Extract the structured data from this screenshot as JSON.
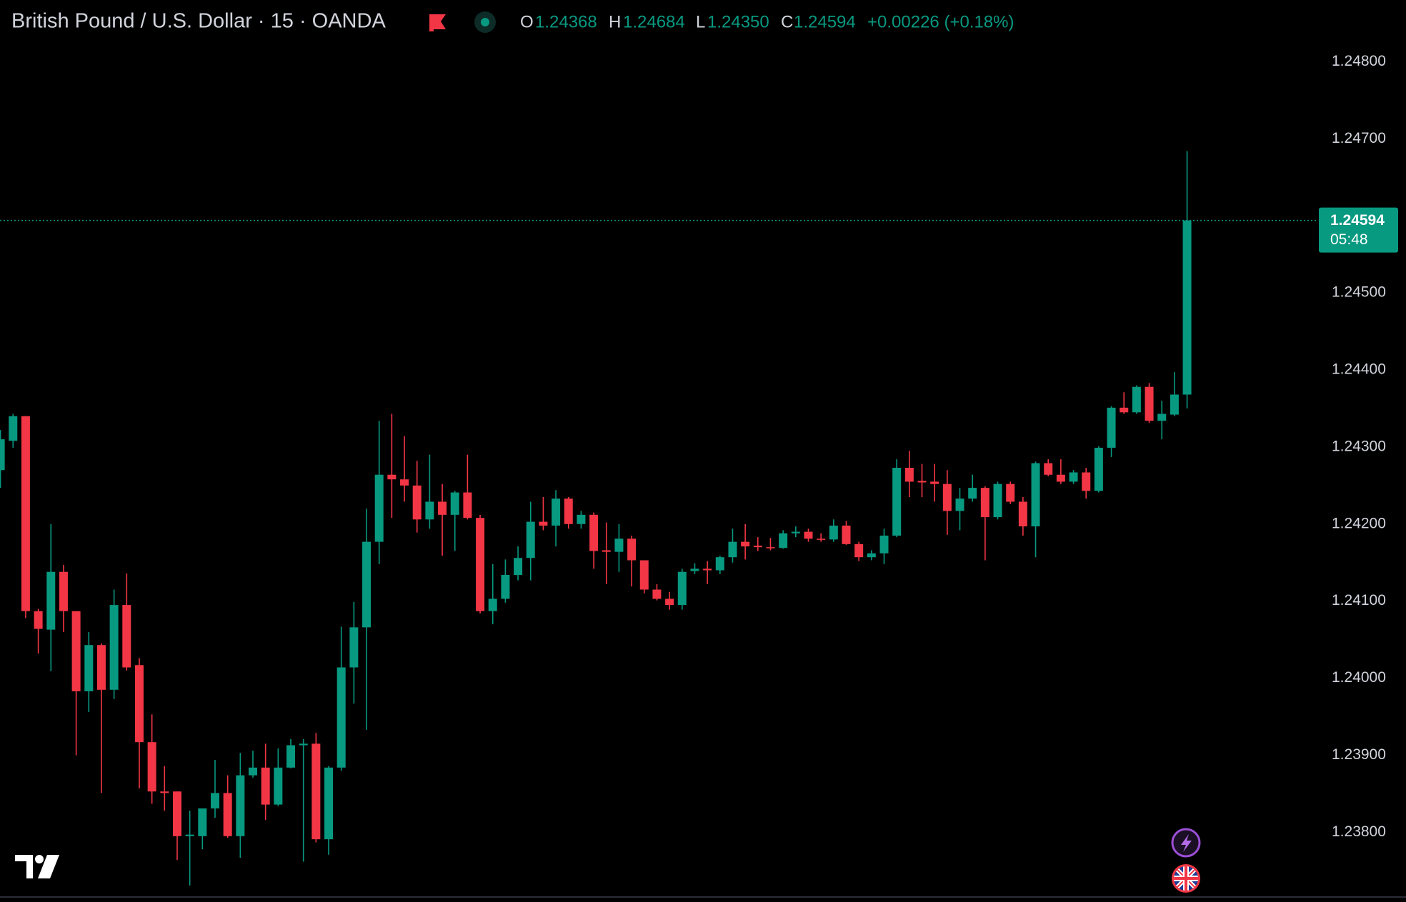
{
  "chart_data": {
    "type": "candlestick",
    "title": "British Pound / U.S. Dollar · 15 · OANDA",
    "ohlc_legend": [
      {
        "key": "O",
        "value": "1.24368"
      },
      {
        "key": "H",
        "value": "1.24684"
      },
      {
        "key": "L",
        "value": "1.24350"
      },
      {
        "key": "C",
        "value": "1.24594"
      }
    ],
    "change": "+0.00226 (+0.18%)",
    "countdown": "05:48",
    "up_color": "#089981",
    "down_color": "#f23645",
    "open": [
      1.2427,
      1.24308,
      1.2434,
      1.24087,
      1.24063,
      1.24138,
      1.24087,
      1.23983,
      1.24043,
      1.23985,
      1.24095,
      1.24017,
      1.23917,
      1.23853,
      1.23853,
      1.23795,
      1.23795,
      1.23831,
      1.23851,
      1.23795,
      1.23874,
      1.23884,
      1.23836,
      1.23884,
      1.23913,
      1.23915,
      1.23791,
      1.23884,
      1.24014,
      1.24066,
      1.24177,
      1.24264,
      1.24258,
      1.2425,
      1.24206,
      1.24229,
      1.24212,
      1.24241,
      1.24208,
      1.24087,
      1.24103,
      1.24134,
      1.24156,
      1.24203,
      1.24198,
      1.24233,
      1.242,
      1.24212,
      1.24166,
      1.24164,
      1.24181,
      1.24153,
      1.24115,
      1.24103,
      1.24095,
      1.24139,
      1.24142,
      1.2414,
      1.24157,
      1.24177,
      1.24172,
      1.2417,
      1.24169,
      1.24188,
      1.2419,
      1.24181,
      1.2418,
      1.24198,
      1.24174,
      1.24157,
      1.24162,
      1.24185,
      1.24273,
      1.24256,
      1.24255,
      1.24252,
      1.24217,
      1.24233,
      1.24247,
      1.24209,
      1.24252,
      1.24229,
      1.24197,
      1.24279,
      1.24264,
      1.24255,
      1.24267,
      1.24243,
      1.24299,
      1.24351,
      1.24345,
      1.24378,
      1.24334,
      1.24342,
      1.24368
    ],
    "high": [
      1.24322,
      1.24343,
      1.2434,
      1.2409,
      1.242,
      1.24147,
      1.24087,
      1.2406,
      1.24045,
      1.24115,
      1.24136,
      1.24026,
      1.23953,
      1.23886,
      1.23853,
      1.23828,
      1.23831,
      1.23894,
      1.23874,
      1.23903,
      1.23906,
      1.23915,
      1.23909,
      1.23921,
      1.23921,
      1.23929,
      1.23886,
      1.24067,
      1.24099,
      1.2422,
      1.24334,
      1.24343,
      1.24314,
      1.24282,
      1.2429,
      1.24252,
      1.24243,
      1.2429,
      1.24212,
      1.24148,
      1.24154,
      1.24171,
      1.24229,
      1.24235,
      1.24244,
      1.24235,
      1.24217,
      1.24215,
      1.24202,
      1.242,
      1.24185,
      1.24153,
      1.24122,
      1.24112,
      1.24142,
      1.24149,
      1.24152,
      1.24159,
      1.24194,
      1.242,
      1.24183,
      1.24182,
      1.24192,
      1.24197,
      1.24194,
      1.24188,
      1.24206,
      1.24204,
      1.24177,
      1.24166,
      1.24194,
      1.24284,
      1.24295,
      1.24278,
      1.24278,
      1.2427,
      1.24247,
      1.24264,
      1.24249,
      1.24255,
      1.24255,
      1.24235,
      1.24281,
      1.24284,
      1.24284,
      1.2427,
      1.24273,
      1.24301,
      1.24353,
      1.24371,
      1.2438,
      1.24383,
      1.2436,
      1.24397,
      1.24684
    ],
    "low": [
      1.24247,
      1.24299,
      1.24078,
      1.24032,
      1.24009,
      1.2406,
      1.239,
      1.23956,
      1.23851,
      1.23973,
      1.2401,
      1.23857,
      1.23837,
      1.23828,
      1.23764,
      1.23731,
      1.23778,
      1.23819,
      1.23793,
      1.23767,
      1.23871,
      1.23816,
      1.23834,
      1.23883,
      1.23762,
      1.23787,
      1.23771,
      1.2388,
      1.23967,
      1.23933,
      1.24148,
      1.24208,
      1.24229,
      1.24189,
      1.24194,
      1.24159,
      1.24165,
      1.24206,
      1.24084,
      1.2407,
      1.24098,
      1.24127,
      1.24127,
      1.24192,
      1.24171,
      1.24194,
      1.24194,
      1.24142,
      1.24122,
      1.24138,
      1.24119,
      1.2411,
      1.24101,
      1.24089,
      1.24089,
      1.24135,
      1.24122,
      1.24135,
      1.2415,
      1.24154,
      1.24165,
      1.24166,
      1.24168,
      1.24183,
      1.24177,
      1.24177,
      1.24177,
      1.24173,
      1.24152,
      1.24153,
      1.24148,
      1.24183,
      1.24235,
      1.24235,
      1.24229,
      1.24186,
      1.24192,
      1.24229,
      1.24153,
      1.24206,
      1.24226,
      1.24185,
      1.24157,
      1.24262,
      1.24252,
      1.24252,
      1.24233,
      1.24241,
      1.24287,
      1.24343,
      1.24343,
      1.24331,
      1.2431,
      1.2434,
      1.2435
    ],
    "close": [
      1.2431,
      1.2434,
      1.24087,
      1.24064,
      1.24138,
      1.24087,
      1.23983,
      1.24043,
      1.23985,
      1.24095,
      1.24014,
      1.23917,
      1.23853,
      1.23851,
      1.23795,
      1.23797,
      1.23831,
      1.23851,
      1.23795,
      1.23874,
      1.23884,
      1.23836,
      1.23884,
      1.23913,
      1.23915,
      1.23791,
      1.23884,
      1.24014,
      1.24066,
      1.24177,
      1.24264,
      1.24258,
      1.2425,
      1.24206,
      1.24229,
      1.24212,
      1.24241,
      1.24208,
      1.24087,
      1.24103,
      1.24134,
      1.24156,
      1.24203,
      1.24198,
      1.24233,
      1.242,
      1.24212,
      1.24165,
      1.24164,
      1.24181,
      1.24153,
      1.24115,
      1.24103,
      1.24095,
      1.24138,
      1.24142,
      1.2414,
      1.24157,
      1.24177,
      1.24171,
      1.2417,
      1.24169,
      1.24188,
      1.2419,
      1.24181,
      1.2418,
      1.24198,
      1.24174,
      1.24157,
      1.24162,
      1.24185,
      1.24273,
      1.24255,
      1.24254,
      1.24252,
      1.24217,
      1.24233,
      1.24247,
      1.24209,
      1.24252,
      1.24229,
      1.24197,
      1.24279,
      1.24264,
      1.24255,
      1.24267,
      1.24243,
      1.24299,
      1.24351,
      1.24345,
      1.24378,
      1.24334,
      1.24343,
      1.24368,
      1.24594
    ],
    "ylim": [
      1.23717,
      1.2488
    ],
    "yticks": [
      {
        "value": 1.238,
        "label": "1.23800"
      },
      {
        "value": 1.239,
        "label": "1.23900"
      },
      {
        "value": 1.24,
        "label": "1.24000"
      },
      {
        "value": 1.241,
        "label": "1.24100"
      },
      {
        "value": 1.242,
        "label": "1.24200"
      },
      {
        "value": 1.243,
        "label": "1.24300"
      },
      {
        "value": 1.244,
        "label": "1.24400"
      },
      {
        "value": 1.245,
        "label": "1.24500"
      },
      {
        "value": 1.247,
        "label": "1.24700"
      },
      {
        "value": 1.248,
        "label": "1.24800"
      }
    ]
  }
}
